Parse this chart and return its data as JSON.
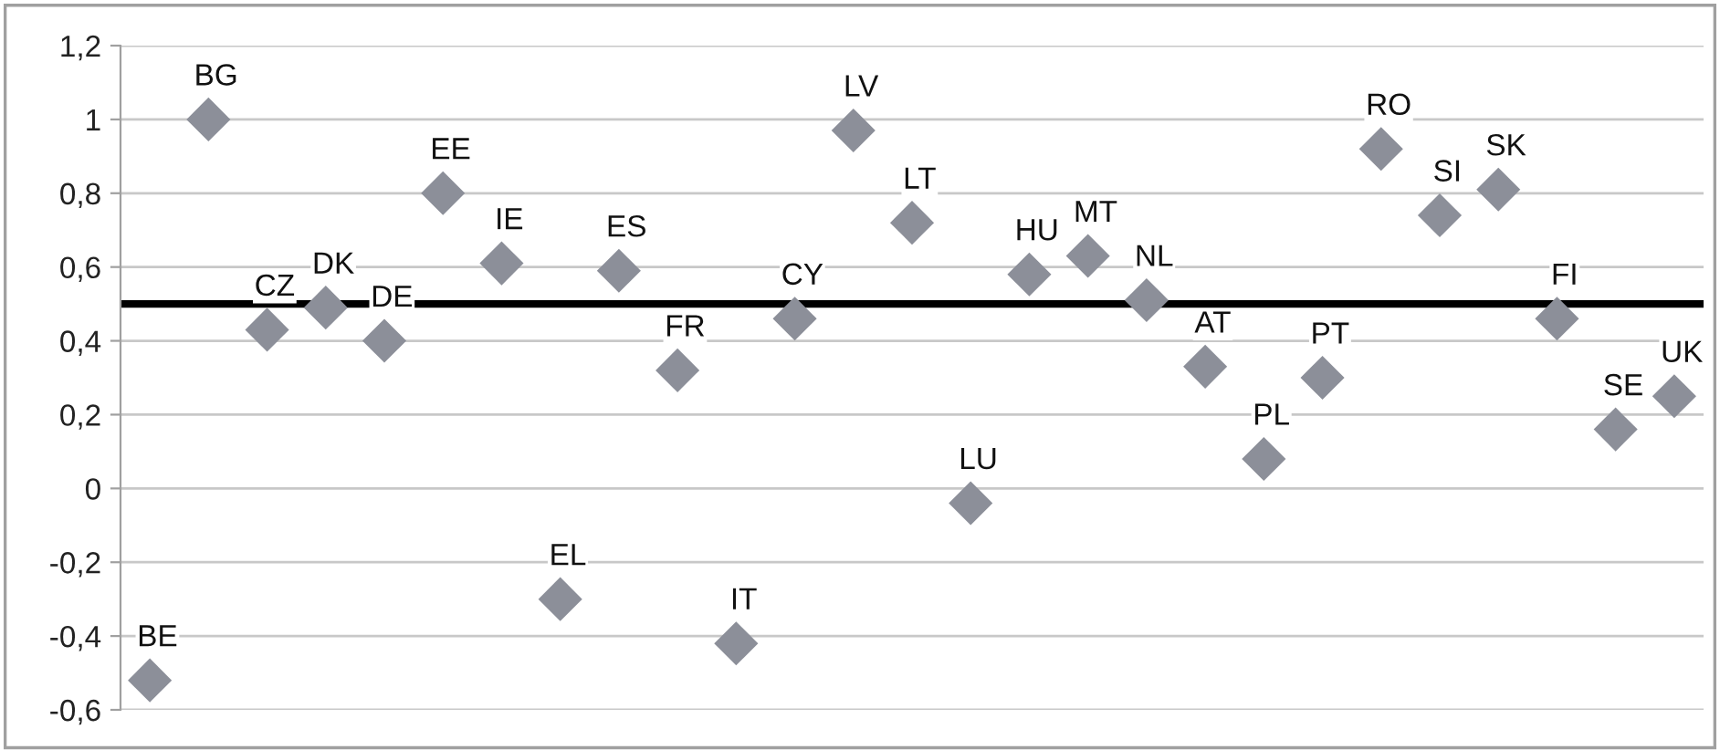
{
  "chart_data": {
    "type": "scatter",
    "categories": [
      "BE",
      "BG",
      "CZ",
      "DK",
      "DE",
      "EE",
      "IE",
      "EL",
      "ES",
      "FR",
      "IT",
      "CY",
      "LV",
      "LT",
      "LU",
      "HU",
      "MT",
      "NL",
      "AT",
      "PL",
      "PT",
      "RO",
      "SI",
      "SK",
      "FI",
      "SE",
      "UK"
    ],
    "series": [
      {
        "color": "#8c8f99",
        "values": [
          -0.52,
          1.0,
          0.43,
          0.49,
          0.4,
          0.8,
          0.61,
          -0.3,
          0.59,
          0.32,
          -0.42,
          0.46,
          0.97,
          0.72,
          -0.04,
          0.58,
          0.63,
          0.51,
          0.33,
          0.08,
          0.3,
          0.92,
          0.74,
          0.81,
          0.46,
          0.16,
          0.25
        ]
      }
    ],
    "marker": "diamond",
    "ylim": [
      -0.6,
      1.2
    ],
    "yticks": [
      {
        "value": -0.6,
        "label": "-0,6"
      },
      {
        "value": -0.4,
        "label": "-0,4"
      },
      {
        "value": -0.2,
        "label": "-0,2"
      },
      0,
      {
        "value": 0.2,
        "label": "0,2"
      },
      {
        "value": 0.4,
        "label": "0,4"
      },
      {
        "value": 0.6,
        "label": "0,6"
      },
      {
        "value": 0.8,
        "label": "0,8"
      },
      1,
      {
        "value": 1.2,
        "label": "1,2"
      }
    ],
    "grid": "y",
    "tick_labels": "y",
    "ref_lines": [
      {
        "axis": "y",
        "value": 0.5,
        "color": "#000000"
      }
    ]
  }
}
